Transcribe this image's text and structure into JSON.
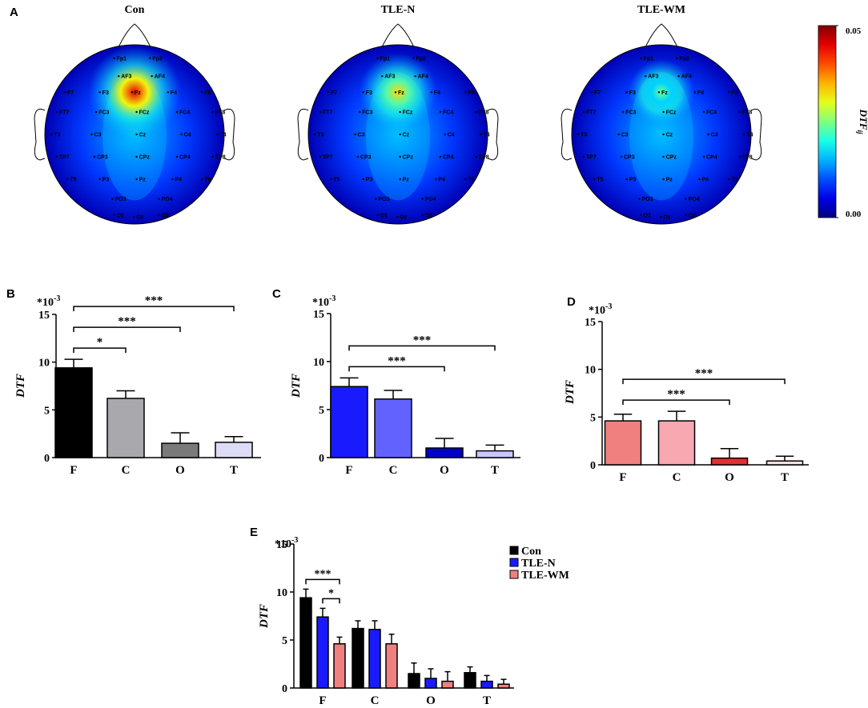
{
  "chart_data": [
    {
      "type": "topomap",
      "panel": "A",
      "maps": [
        {
          "title": "Con",
          "peak": 0.045
        },
        {
          "title": "TLE-N",
          "peak": 0.033
        },
        {
          "title": "TLE-WM",
          "peak": 0.024
        }
      ],
      "peak_electrode": "Fz",
      "electrodes": [
        "Fp1",
        "Fp2",
        "AF3",
        "AF4",
        "F7",
        "F3",
        "Fz",
        "F4",
        "F8",
        "FT7",
        "FC3",
        "FCz",
        "FC4",
        "FT8",
        "T3",
        "C3",
        "Cz",
        "C4",
        "T4",
        "TP7",
        "CP3",
        "CPz",
        "CP4",
        "TP8",
        "T5",
        "P3",
        "Pz",
        "P4",
        "T6",
        "PO3",
        "PO4",
        "O1",
        "Oz",
        "O2"
      ],
      "colorbar": {
        "label": "DTF",
        "label_sub": "ij",
        "lim": [
          0,
          0.05
        ],
        "ticks": [
          {
            "value": 0.05,
            "label": "0.05"
          },
          {
            "value": 0,
            "label": "0.00"
          }
        ]
      }
    },
    {
      "type": "bar",
      "panel": "B",
      "ylabel": "DTF",
      "scale_label": "*10",
      "scale_exp": "-3",
      "categories": [
        "F",
        "C",
        "O",
        "T"
      ],
      "values": [
        9.4,
        6.2,
        1.5,
        1.6
      ],
      "errors": [
        0.9,
        0.8,
        1.1,
        0.6
      ],
      "colors": [
        "#000000",
        "#a8a8ad",
        "#7a7a7a",
        "#dcdcf6"
      ],
      "ylim": [
        0,
        15
      ],
      "yticks": [
        0,
        5,
        10,
        15
      ],
      "brackets": [
        {
          "from": "F",
          "to": "C",
          "label": "*"
        },
        {
          "from": "F",
          "to": "O",
          "label": "***"
        },
        {
          "from": "F",
          "to": "T",
          "label": "***"
        }
      ]
    },
    {
      "type": "bar",
      "panel": "C",
      "ylabel": "DTF",
      "scale_label": "*10",
      "scale_exp": "-3",
      "categories": [
        "F",
        "C",
        "O",
        "T"
      ],
      "values": [
        7.4,
        6.1,
        1.0,
        0.7
      ],
      "errors": [
        0.9,
        0.9,
        1.0,
        0.6
      ],
      "colors": [
        "#1a1aff",
        "#6262ff",
        "#0000cc",
        "#c8c8ff"
      ],
      "ylim": [
        0,
        15
      ],
      "yticks": [
        0,
        5,
        10,
        15
      ],
      "brackets": [
        {
          "from": "F",
          "to": "O",
          "label": "***"
        },
        {
          "from": "F",
          "to": "T",
          "label": "***"
        }
      ]
    },
    {
      "type": "bar",
      "panel": "D",
      "ylabel": "DTF",
      "scale_label": "*10",
      "scale_exp": "-3",
      "categories": [
        "F",
        "C",
        "O",
        "T"
      ],
      "values": [
        4.6,
        4.6,
        0.7,
        0.4
      ],
      "errors": [
        0.7,
        1.0,
        1.0,
        0.5
      ],
      "colors": [
        "#f08080",
        "#f7a8b0",
        "#e03030",
        "#fde0e0"
      ],
      "ylim": [
        0,
        15
      ],
      "yticks": [
        0,
        5,
        10,
        15
      ],
      "brackets": [
        {
          "from": "F",
          "to": "O",
          "label": "***"
        },
        {
          "from": "F",
          "to": "T",
          "label": "***"
        }
      ]
    },
    {
      "type": "grouped_bar",
      "panel": "E",
      "ylabel": "DTF",
      "scale_label": "*10",
      "scale_exp": "-3",
      "categories": [
        "F",
        "C",
        "O",
        "T"
      ],
      "ylim": [
        0,
        15
      ],
      "yticks": [
        0,
        5,
        10,
        15
      ],
      "legend": "upper right",
      "series": [
        {
          "name": "Con",
          "color": "#000000",
          "values": [
            9.4,
            6.2,
            1.5,
            1.6
          ],
          "errors": [
            0.9,
            0.8,
            1.1,
            0.6
          ]
        },
        {
          "name": "TLE-N",
          "color": "#1a1aff",
          "values": [
            7.4,
            6.1,
            1.0,
            0.7
          ],
          "errors": [
            0.9,
            0.9,
            1.0,
            0.6
          ]
        },
        {
          "name": "TLE-WM",
          "color": "#f08080",
          "values": [
            4.6,
            4.6,
            0.7,
            0.4
          ],
          "errors": [
            0.7,
            1.0,
            1.0,
            0.5
          ]
        }
      ],
      "brackets": [
        {
          "category": "F",
          "from": "TLE-N",
          "to": "TLE-WM",
          "label": "*"
        },
        {
          "category": "F",
          "from": "Con",
          "to": "TLE-WM",
          "label": "***"
        }
      ]
    }
  ]
}
